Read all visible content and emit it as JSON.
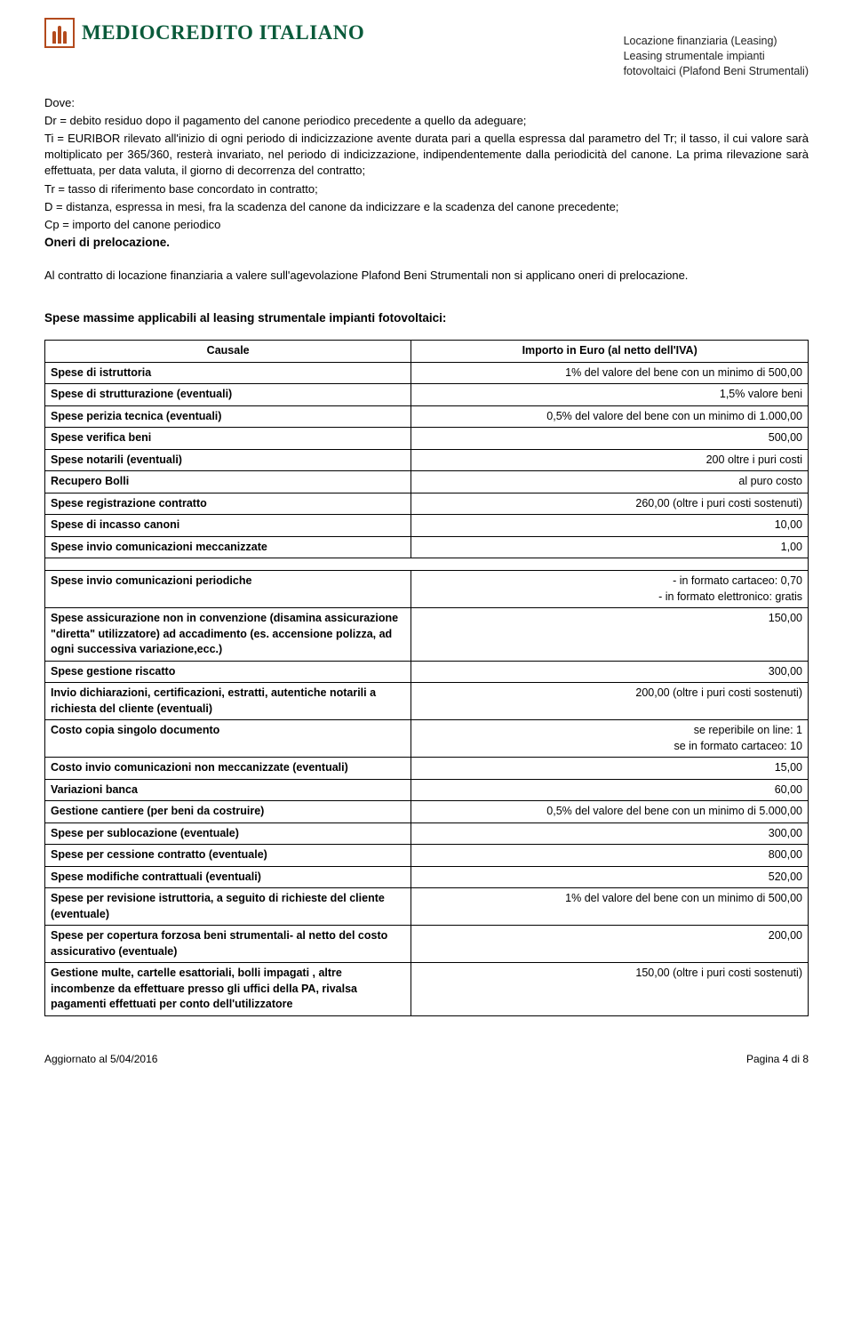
{
  "header": {
    "logo_text": "MEDIOCREDITO ITALIANO",
    "subtitle_line1": "Locazione finanziaria (Leasing)",
    "subtitle_line2": "Leasing strumentale impianti",
    "subtitle_line3": "fotovoltaici (Plafond Beni Strumentali)"
  },
  "body": {
    "dove": "Dove:",
    "p1": "Dr = debito residuo dopo il pagamento del canone periodico precedente a quello da adeguare;",
    "p2": "Ti  =  EURIBOR  rilevato all'inizio di ogni periodo di indicizzazione avente durata pari a quella espressa dal parametro del Tr;  il tasso, il cui valore sarà moltiplicato per 365/360,  resterà invariato, nel periodo di indicizzazione, indipendentemente dalla periodicità del canone. La prima rilevazione sarà effettuata, per data valuta, il giorno di decorrenza del contratto;",
    "p3": "Tr  = tasso di riferimento base concordato in contratto;",
    "p4": "D = distanza, espressa in mesi, fra la scadenza del canone da indicizzare e la scadenza del canone precedente;",
    "p5": "Cp = importo del canone periodico",
    "oneri_heading": "Oneri di prelocazione.",
    "oneri_text": "Al contratto di locazione finanziaria a valere sull'agevolazione Plafond Beni Strumentali non si applicano oneri di prelocazione."
  },
  "table": {
    "title": "Spese massime applicabili al leasing strumentale impianti fotovoltaici:",
    "header_left": "Causale",
    "header_right": "Importo in Euro (al netto dell'IVA)",
    "rows1": [
      {
        "label": "Spese di istruttoria",
        "value": "1% del valore del bene con un minimo di 500,00"
      },
      {
        "label": "Spese di strutturazione (eventuali)",
        "value": "1,5% valore beni"
      },
      {
        "label": "Spese perizia tecnica (eventuali)",
        "value": "0,5% del valore del bene con un minimo di 1.000,00"
      },
      {
        "label": "Spese verifica beni",
        "value": "500,00"
      },
      {
        "label": "Spese notarili (eventuali)",
        "value": "200 oltre i puri costi"
      },
      {
        "label": "Recupero Bolli",
        "value": "al  puro  costo"
      },
      {
        "label": "Spese registrazione contratto",
        "value": "260,00 (oltre i puri costi sostenuti)"
      },
      {
        "label": "Spese di incasso canoni",
        "value": "10,00"
      },
      {
        "label": "Spese invio comunicazioni  meccanizzate",
        "value": "1,00"
      }
    ],
    "rows2": [
      {
        "label": "Spese invio comunicazioni periodiche",
        "value": "- in formato cartaceo:      0,70\n- in formato elettronico: gratis"
      },
      {
        "label": "Spese assicurazione non in convenzione (disamina assicurazione \"diretta\" utilizzatore) ad accadimento (es. accensione polizza, ad ogni successiva variazione,ecc.)",
        "value": "150,00"
      },
      {
        "label": "Spese gestione riscatto",
        "value": "300,00"
      },
      {
        "label": "Invio dichiarazioni, certificazioni, estratti, autentiche notarili a richiesta del cliente (eventuali)",
        "value": "200,00 (oltre i puri costi sostenuti)"
      },
      {
        "label": "Costo copia singolo documento",
        "value": "se reperibile on line:        1\nse in formato cartaceo:  10"
      },
      {
        "label": "Costo invio comunicazioni non meccanizzate (eventuali)",
        "value": "15,00"
      },
      {
        "label": "Variazioni banca",
        "value": "60,00"
      },
      {
        "label": "Gestione cantiere  (per beni  da costruire)",
        "value": "0,5% del valore del bene con un minimo di 5.000,00"
      },
      {
        "label": "Spese per sublocazione (eventuale)",
        "value": "300,00"
      },
      {
        "label": "Spese per cessione contratto (eventuale)",
        "value": "800,00"
      },
      {
        "label": "Spese modifiche contrattuali (eventuali)",
        "value": "520,00"
      },
      {
        "label": "Spese per revisione istruttoria, a seguito di richieste  del cliente (eventuale)",
        "value": "1% del valore del bene con un minimo di 500,00"
      },
      {
        "label": "Spese per copertura forzosa beni strumentali- al netto del costo assicurativo (eventuale)",
        "value": "200,00"
      },
      {
        "label": "Gestione multe, cartelle esattoriali, bolli impagati , altre incombenze da effettuare presso gli uffici della PA, rivalsa pagamenti effettuati per conto dell'utilizzatore",
        "value": "150,00 (oltre i puri costi sostenuti)"
      }
    ]
  },
  "footer": {
    "left": "Aggiornato al 5/04/2016",
    "right": "Pagina 4 di 8"
  }
}
